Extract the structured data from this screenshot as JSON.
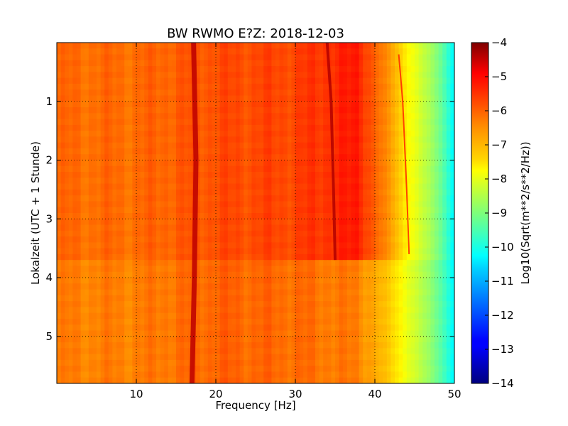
{
  "chart_data": {
    "type": "heatmap",
    "title": "BW RWMO E?Z: 2018-12-03",
    "xlabel": "Frequency [Hz]",
    "ylabel": "Lokalzeit (UTC + 1 Stunde)",
    "xlim": [
      0,
      50
    ],
    "ylim": [
      0,
      5.8
    ],
    "y_inverted": true,
    "x_ticks": [
      10,
      20,
      30,
      40,
      50
    ],
    "y_ticks": [
      1,
      2,
      3,
      4,
      5
    ],
    "grid": true,
    "grid_style": "dotted",
    "colormap": "jet",
    "colorbar": {
      "label": "Log10(Sqrt(m**2/s**2/Hz))",
      "range": [
        -14,
        -4
      ],
      "ticks": [
        -4,
        -5,
        -6,
        -7,
        -8,
        -9,
        -10,
        -11,
        -12,
        -13,
        -14
      ]
    },
    "background_level": {
      "frequency_hz": [
        0,
        10,
        20,
        30,
        38,
        40,
        42,
        44,
        46,
        48,
        50
      ],
      "value_before_3_7h": [
        -6.3,
        -6.3,
        -6.0,
        -5.9,
        -5.5,
        -6.2,
        -6.8,
        -7.6,
        -8.3,
        -9.0,
        -10.3
      ],
      "value_after_3_7h": [
        -6.5,
        -6.5,
        -6.2,
        -6.3,
        -6.5,
        -6.9,
        -7.3,
        -7.9,
        -8.5,
        -9.2,
        -10.3
      ]
    },
    "spectral_lines": [
      {
        "frequency_hz": [
          17.2,
          17.5,
          17.3,
          17.0
        ],
        "time_h": [
          0,
          2,
          4,
          5.8
        ],
        "value": -4.6
      },
      {
        "frequency_hz": [
          34.0,
          34.5,
          34.8,
          35.0
        ],
        "time_h": [
          0,
          1,
          2.5,
          3.7
        ],
        "value": -4.5
      },
      {
        "frequency_hz": [
          43.0,
          43.5,
          44.0,
          44.3
        ],
        "time_h": [
          0.2,
          1,
          2.5,
          3.6
        ],
        "value": -5.6
      }
    ],
    "regime_change_time_h": 3.7
  }
}
